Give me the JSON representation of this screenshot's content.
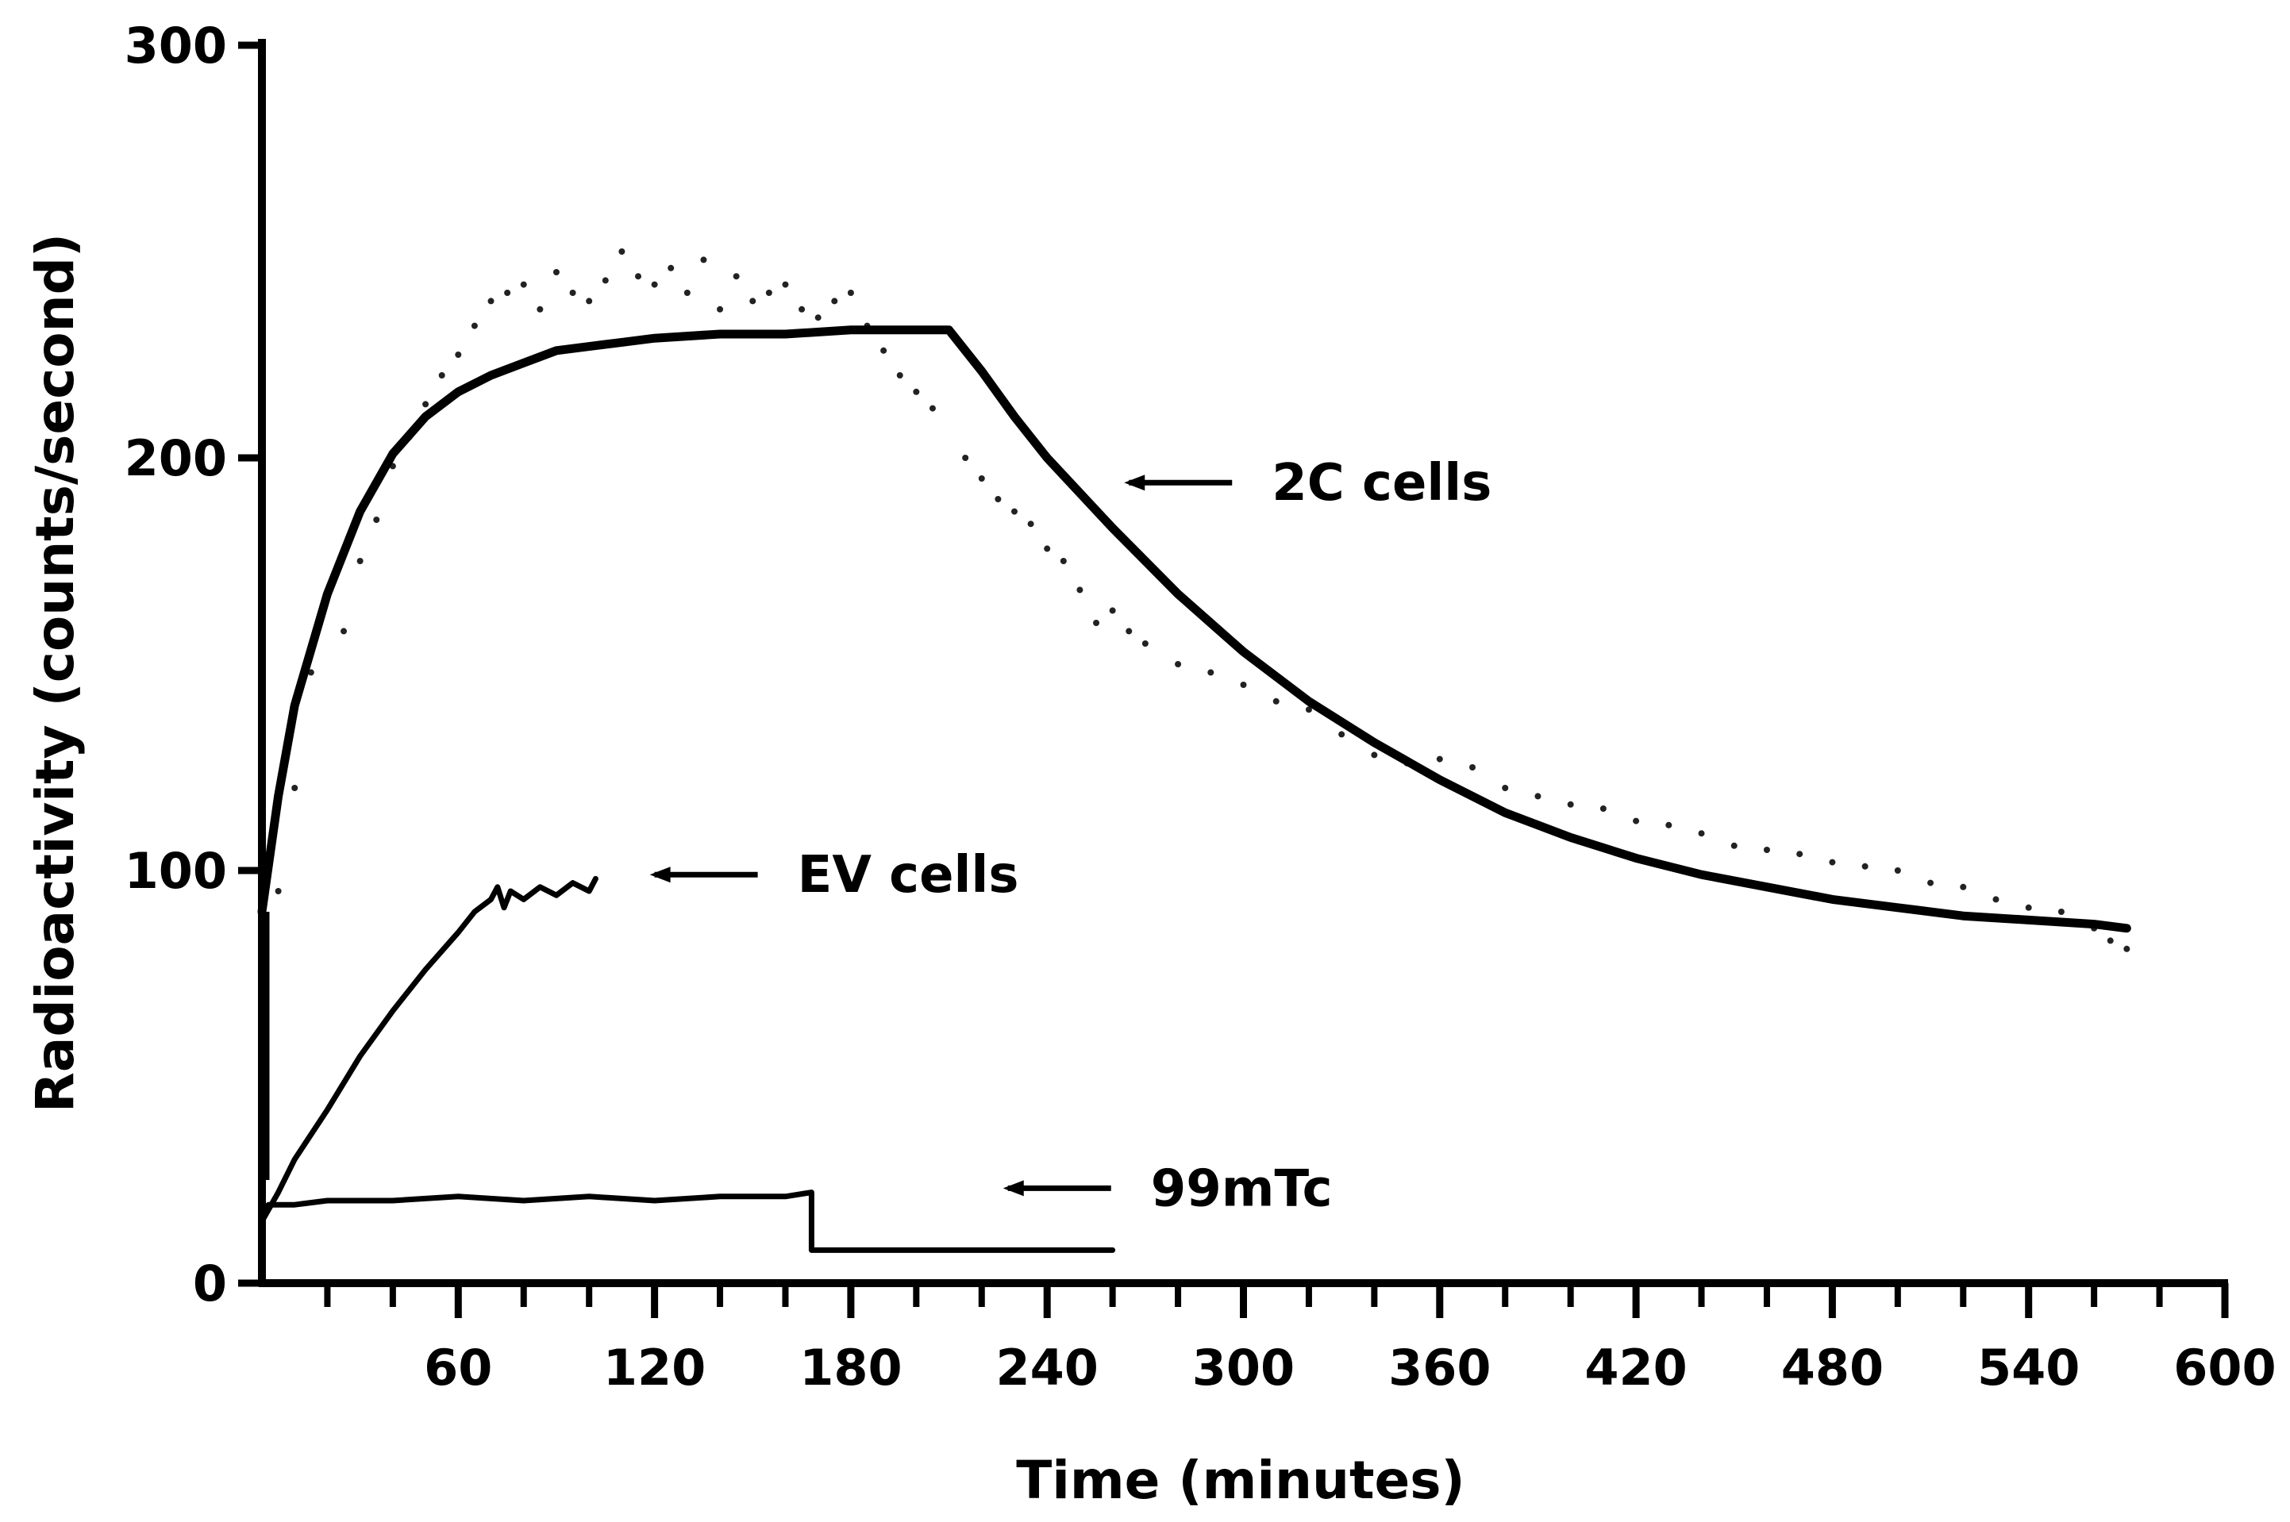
{
  "chart_data": {
    "type": "line",
    "title": "",
    "xlabel": "Time (minutes)",
    "ylabel": "Radioactivity (counts/second)",
    "xlim": [
      0,
      600
    ],
    "ylim": [
      0,
      300
    ],
    "x_ticks": [
      60,
      120,
      180,
      240,
      300,
      360,
      420,
      480,
      540,
      600
    ],
    "x_minor_step": 20,
    "y_ticks": [
      0,
      100,
      200,
      300
    ],
    "grid": false,
    "legend": "none",
    "series": [
      {
        "name": "2C cells",
        "style": "fit",
        "x": [
          0,
          5,
          10,
          20,
          30,
          40,
          50,
          60,
          70,
          80,
          90,
          100,
          110,
          120,
          140,
          160,
          180,
          200,
          210,
          220,
          230,
          240,
          260,
          280,
          300,
          320,
          340,
          360,
          380,
          400,
          420,
          440,
          460,
          480,
          500,
          520,
          540,
          560,
          570
        ],
        "y": [
          90,
          118,
          140,
          167,
          187,
          201,
          210,
          216,
          220,
          223,
          226,
          227,
          228,
          229,
          230,
          230,
          231,
          231,
          231,
          221,
          210,
          200,
          183,
          167,
          153,
          141,
          131,
          122,
          114,
          108,
          103,
          99,
          96,
          93,
          91,
          89,
          88,
          87,
          86
        ],
        "points_x": [
          5,
          10,
          15,
          25,
          30,
          35,
          40,
          45,
          50,
          55,
          60,
          65,
          70,
          75,
          80,
          85,
          90,
          95,
          100,
          105,
          110,
          115,
          120,
          125,
          130,
          135,
          140,
          145,
          150,
          155,
          160,
          165,
          170,
          175,
          180,
          185,
          190,
          195,
          200,
          205,
          215,
          220,
          225,
          230,
          235,
          240,
          245,
          250,
          255,
          260,
          265,
          270,
          280,
          290,
          300,
          310,
          320,
          330,
          340,
          350,
          360,
          370,
          380,
          390,
          400,
          410,
          420,
          430,
          440,
          450,
          460,
          470,
          480,
          490,
          500,
          510,
          520,
          530,
          540,
          550,
          560,
          565,
          570
        ],
        "points_y": [
          95,
          120,
          148,
          158,
          175,
          185,
          198,
          205,
          213,
          220,
          225,
          232,
          238,
          240,
          242,
          236,
          245,
          240,
          238,
          243,
          250,
          244,
          242,
          246,
          240,
          248,
          236,
          244,
          238,
          240,
          242,
          236,
          234,
          238,
          240,
          232,
          226,
          220,
          216,
          212,
          200,
          195,
          190,
          187,
          184,
          178,
          175,
          168,
          160,
          163,
          158,
          155,
          150,
          148,
          145,
          141,
          139,
          133,
          128,
          126,
          127,
          125,
          120,
          118,
          116,
          115,
          112,
          111,
          109,
          106,
          105,
          104,
          102,
          101,
          100,
          97,
          96,
          93,
          91,
          90,
          86,
          83,
          81
        ]
      },
      {
        "name": "EV cells",
        "style": "trace",
        "x": [
          0,
          5,
          10,
          20,
          30,
          40,
          50,
          60,
          65,
          70,
          72,
          74,
          76,
          80,
          85,
          90,
          95,
          100,
          102
        ],
        "y": [
          15,
          22,
          30,
          42,
          55,
          66,
          76,
          85,
          90,
          93,
          96,
          91,
          95,
          93,
          96,
          94,
          97,
          95,
          98
        ]
      },
      {
        "name": "99mTc",
        "style": "trace",
        "x": [
          0,
          2,
          10,
          20,
          40,
          60,
          80,
          100,
          120,
          140,
          160,
          168,
          168,
          260
        ],
        "y": [
          17,
          19,
          19,
          20,
          20,
          21,
          20,
          21,
          20,
          21,
          21,
          22,
          8,
          8
        ]
      }
    ],
    "annotations": [
      {
        "text": "2C cells",
        "target_x": 265,
        "target_y": 194
      },
      {
        "text": "EV cells",
        "target_x": 120,
        "target_y": 99
      },
      {
        "text": "99mTc",
        "target_x": 228,
        "target_y": 23
      }
    ]
  }
}
